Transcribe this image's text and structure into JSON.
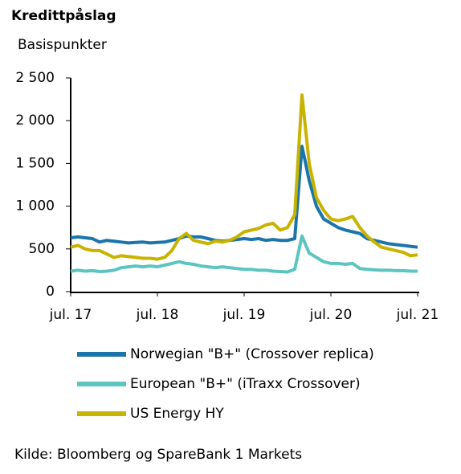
{
  "chart_data": {
    "type": "line",
    "title": "Kredittpåslag",
    "y_label": "Basispunkter",
    "source": "Kilde: Bloomberg og SpareBank 1 Markets",
    "x": [
      "2017-07",
      "2017-08",
      "2017-09",
      "2017-10",
      "2017-11",
      "2017-12",
      "2018-01",
      "2018-02",
      "2018-03",
      "2018-04",
      "2018-05",
      "2018-06",
      "2018-07",
      "2018-08",
      "2018-09",
      "2018-10",
      "2018-11",
      "2018-12",
      "2019-01",
      "2019-02",
      "2019-03",
      "2019-04",
      "2019-05",
      "2019-06",
      "2019-07",
      "2019-08",
      "2019-09",
      "2019-10",
      "2019-11",
      "2019-12",
      "2020-01",
      "2020-02",
      "2020-03",
      "2020-04",
      "2020-05",
      "2020-06",
      "2020-07",
      "2020-08",
      "2020-09",
      "2020-10",
      "2020-11",
      "2020-12",
      "2021-01",
      "2021-02",
      "2021-03",
      "2021-04",
      "2021-05",
      "2021-06",
      "2021-07"
    ],
    "series": [
      {
        "name": "Norwegian \"B+\" (Crossover replica)",
        "color": "#1b75aa",
        "values": [
          630,
          640,
          630,
          620,
          580,
          600,
          590,
          580,
          570,
          575,
          580,
          570,
          575,
          580,
          600,
          620,
          650,
          640,
          640,
          620,
          600,
          590,
          600,
          610,
          620,
          610,
          620,
          600,
          610,
          600,
          600,
          620,
          1700,
          1300,
          1000,
          850,
          800,
          750,
          720,
          700,
          680,
          620,
          600,
          580,
          560,
          550,
          540,
          530,
          520
        ]
      },
      {
        "name": "European \"B+\" (iTraxx Crossover)",
        "color": "#5cc5c1",
        "values": [
          240,
          250,
          240,
          245,
          235,
          240,
          250,
          280,
          290,
          300,
          290,
          300,
          290,
          310,
          330,
          350,
          330,
          320,
          300,
          290,
          280,
          290,
          280,
          270,
          260,
          260,
          250,
          250,
          240,
          235,
          230,
          260,
          650,
          450,
          400,
          350,
          330,
          330,
          320,
          330,
          270,
          260,
          255,
          250,
          250,
          245,
          245,
          240,
          240
        ]
      },
      {
        "name": "US Energy HY",
        "color": "#c8b300",
        "values": [
          520,
          540,
          500,
          480,
          480,
          440,
          400,
          420,
          410,
          400,
          390,
          390,
          380,
          400,
          480,
          620,
          680,
          600,
          580,
          560,
          590,
          580,
          600,
          640,
          700,
          720,
          740,
          780,
          800,
          720,
          750,
          900,
          2300,
          1500,
          1100,
          950,
          850,
          830,
          850,
          880,
          750,
          650,
          580,
          520,
          500,
          480,
          460,
          420,
          430
        ]
      }
    ],
    "ylim": [
      0,
      2500
    ],
    "yticks": [
      0,
      500,
      {
        "value": 1000,
        "label": "1 000"
      },
      {
        "value": 1500,
        "label": "1 500"
      },
      {
        "value": 2000,
        "label": "2 000"
      },
      {
        "value": 2500,
        "label": "2 500"
      }
    ],
    "xticks": [
      {
        "value": "2017-07",
        "label": "jul. 17"
      },
      {
        "value": "2018-07",
        "label": "jul. 18"
      },
      {
        "value": "2019-07",
        "label": "jul. 19"
      },
      {
        "value": "2020-07",
        "label": "jul. 20"
      },
      {
        "value": "2021-07",
        "label": "jul. 21"
      }
    ]
  }
}
